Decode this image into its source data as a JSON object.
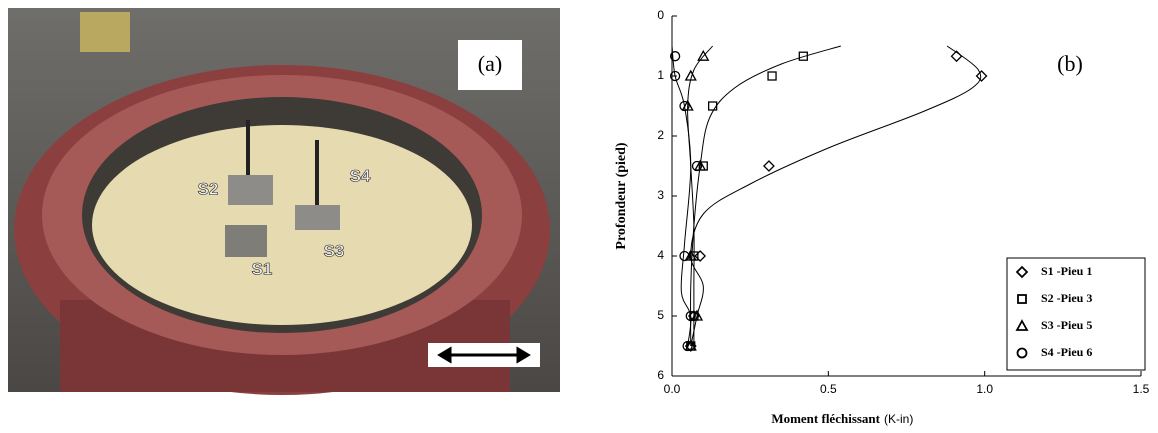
{
  "photo": {
    "panel_label": "(a)",
    "labels": [
      "S1",
      "S2",
      "S3",
      "S4"
    ]
  },
  "chart_data": {
    "type": "scatter",
    "annotation": "(b)",
    "xlabel": "Moment fléchissant",
    "xlabel_unit": "(K-in)",
    "ylabel": "Profondeur (pied)",
    "xlim": [
      0,
      1.5
    ],
    "ylim": [
      0,
      6
    ],
    "y_inverted": true,
    "xticks": [
      {
        "value": 0,
        "label": "0.0"
      },
      0.5,
      {
        "value": 1,
        "label": "1.0"
      },
      1.5
    ],
    "yticks": [
      0,
      1,
      2,
      3,
      4,
      5,
      6
    ],
    "grid": false,
    "legend": "lower right",
    "series": [
      {
        "name": "S1 -Pieu 1",
        "marker": "diamond",
        "color": "#000000",
        "x": [
          0.91,
          0.99,
          0.31,
          0.09,
          0.07,
          0.06
        ],
        "values": [
          0.67,
          1.0,
          2.5,
          4.0,
          5.0,
          5.5
        ],
        "fit_x": [
          0.88,
          0.98,
          0.96,
          0.8,
          0.5,
          0.25,
          0.1,
          0.06,
          0.1,
          0.08,
          0.06
        ],
        "fit_y": [
          0.5,
          0.9,
          1.2,
          1.6,
          2.2,
          2.8,
          3.3,
          4.0,
          4.5,
          5.0,
          5.5
        ]
      },
      {
        "name": "S2 -Pieu 3",
        "marker": "square",
        "color": "#000000",
        "x": [
          0.42,
          0.32,
          0.13,
          0.1,
          0.07,
          0.07,
          0.06
        ],
        "values": [
          0.67,
          1.0,
          1.5,
          2.5,
          4.0,
          5.0,
          5.5
        ],
        "fit_x": [
          0.54,
          0.35,
          0.2,
          0.12,
          0.09,
          0.07,
          0.06,
          0.06
        ],
        "fit_y": [
          0.5,
          0.8,
          1.2,
          1.7,
          2.5,
          3.5,
          4.5,
          5.5
        ]
      },
      {
        "name": "S3 -Pieu 5",
        "marker": "triangle",
        "color": "#000000",
        "x": [
          0.1,
          0.06,
          0.05,
          0.09,
          0.06,
          0.08,
          0.06
        ],
        "values": [
          0.67,
          1.0,
          1.5,
          2.5,
          4.0,
          5.0,
          5.5
        ],
        "fit_x": [
          0.13,
          0.07,
          0.05,
          0.06,
          0.07,
          0.07,
          0.07
        ],
        "fit_y": [
          0.5,
          0.9,
          1.5,
          2.5,
          3.5,
          4.5,
          5.5
        ]
      },
      {
        "name": "S4 -Pieu 6",
        "marker": "circle",
        "color": "#000000",
        "x": [
          0.01,
          0.01,
          0.04,
          0.08,
          0.04,
          0.06,
          0.05
        ],
        "values": [
          0.67,
          1.0,
          1.5,
          2.5,
          4.0,
          5.0,
          5.5
        ],
        "fit_x": [
          0.0,
          0.01,
          0.04,
          0.06,
          0.04,
          0.03,
          0.06,
          0.05
        ],
        "fit_y": [
          0.5,
          1.0,
          1.5,
          2.5,
          3.8,
          4.6,
          5.0,
          5.5
        ]
      }
    ]
  }
}
